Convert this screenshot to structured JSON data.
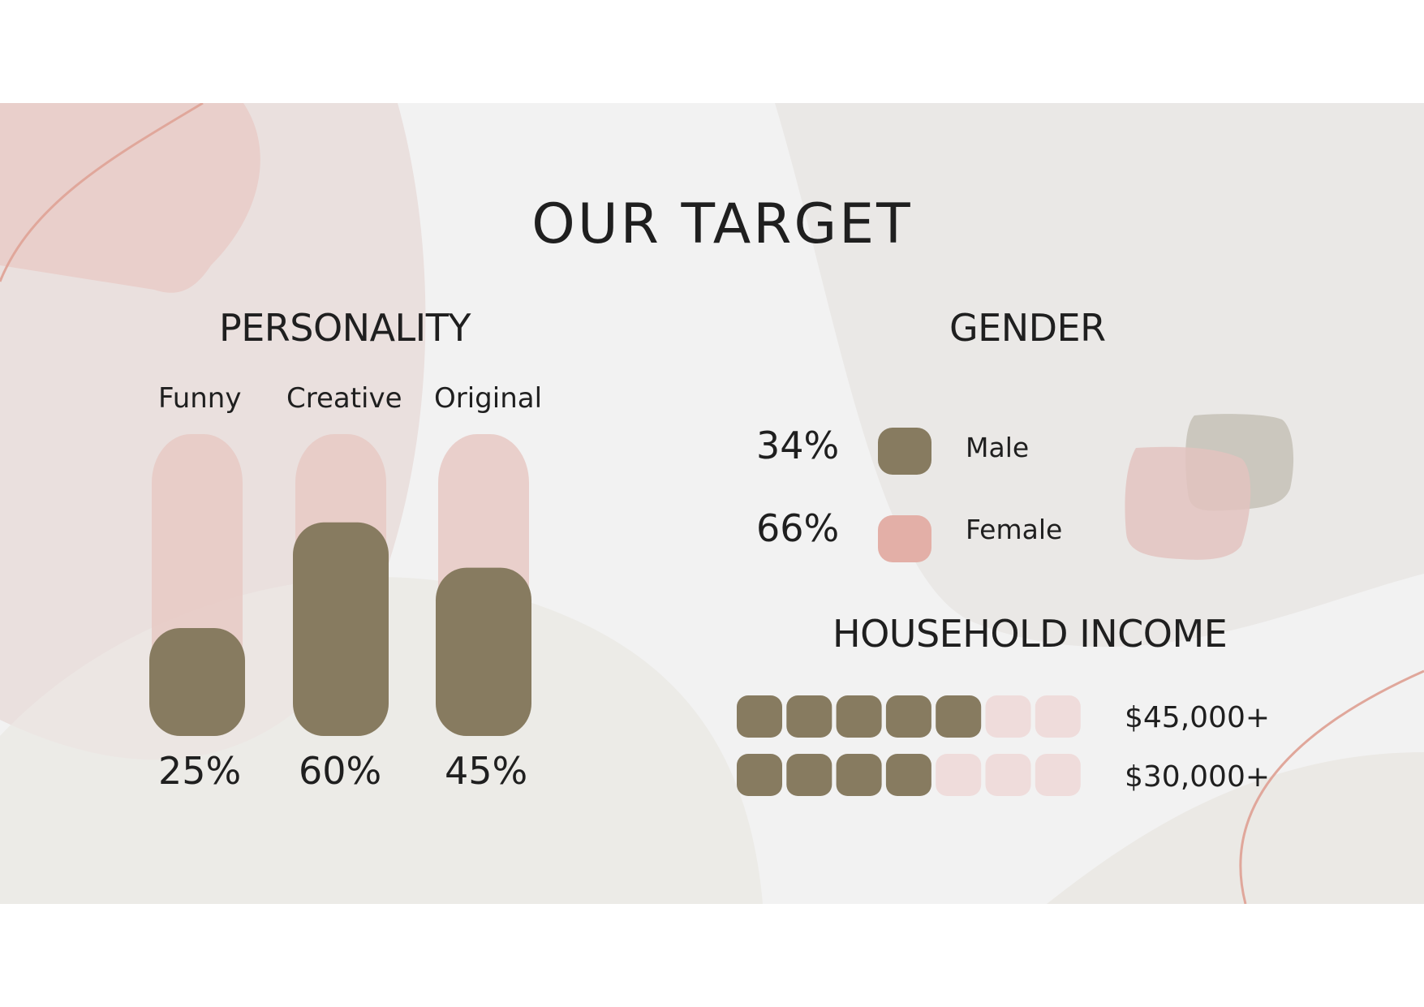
{
  "title": "OUR TARGET",
  "personality": {
    "heading": "PERSONALITY"
  },
  "gender": {
    "heading": "GENDER"
  },
  "income": {
    "heading": "HOUSEHOLD INCOME",
    "total_blocks": 7
  },
  "colors": {
    "dark": "#877b60",
    "pink": "#e8c9c4",
    "pink_mid": "#e3afa7",
    "pink_light": "#efdcdb",
    "stroke": "#e0a79b"
  },
  "chart_data": [
    {
      "type": "bar",
      "title": "PERSONALITY",
      "categories": [
        "Funny",
        "Creative",
        "Original"
      ],
      "values": [
        25,
        60,
        45
      ],
      "value_labels": [
        "25%",
        "60%",
        "45%"
      ],
      "ylim": [
        0,
        100
      ]
    },
    {
      "type": "pie",
      "title": "GENDER",
      "categories": [
        "Male",
        "Female"
      ],
      "values": [
        34,
        66
      ],
      "value_labels": [
        "34%",
        "66%"
      ],
      "colors": [
        "#877b60",
        "#e3afa7"
      ]
    },
    {
      "type": "bar",
      "title": "HOUSEHOLD INCOME",
      "categories": [
        "$45,000+",
        "$30,000+"
      ],
      "values": [
        5,
        4
      ],
      "max": 7
    }
  ]
}
